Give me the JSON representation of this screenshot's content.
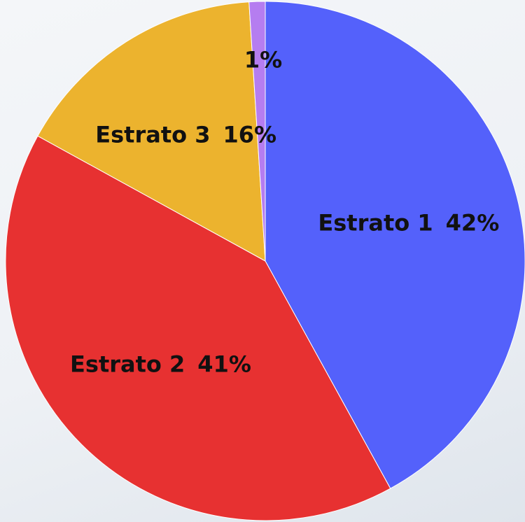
{
  "chart_data": {
    "type": "pie",
    "categories": [
      "Estrato 1",
      "Estrato 2",
      "Estrato 3",
      null
    ],
    "values": [
      42,
      41,
      16,
      1
    ],
    "value_labels": [
      "42%",
      "41%",
      "16%",
      "1%"
    ],
    "colors": [
      "#5461fb",
      "#e73131",
      "#ecb32e",
      "#b57df0"
    ]
  }
}
